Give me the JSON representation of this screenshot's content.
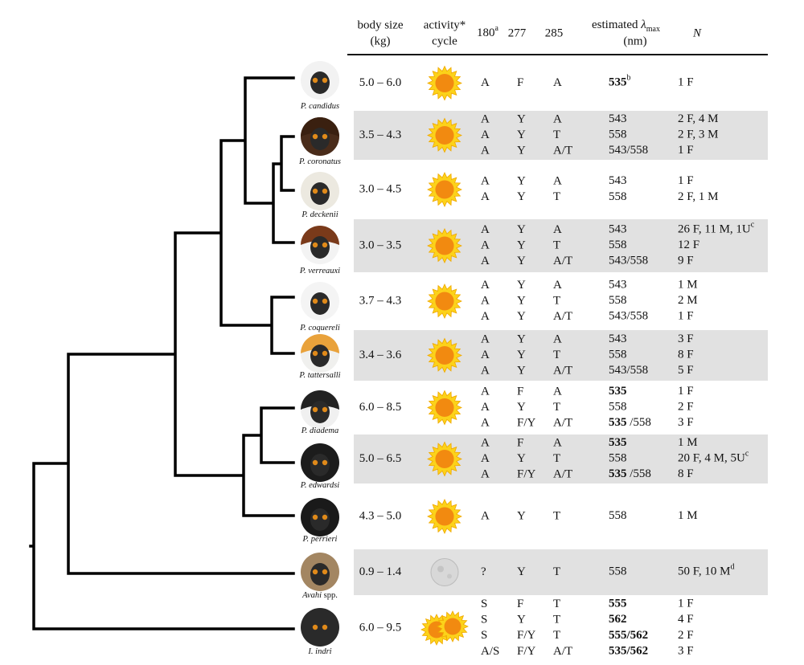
{
  "header": {
    "body_size": [
      "body size",
      "(kg)"
    ],
    "activity": [
      "activity*",
      "cycle"
    ],
    "c180": "180",
    "c180_sup": "a",
    "c277": "277",
    "c285": "285",
    "lambda_pre": "estimated ",
    "lambda_sym": "λ",
    "lambda_sub": "max",
    "lambda_unit": "(nm)",
    "n": "N"
  },
  "rows": [
    {
      "name": "P. candidus",
      "size": "5.0 – 6.0",
      "icon": "sun",
      "shaded": false,
      "lines": [
        {
          "g": [
            "A",
            "F",
            "A"
          ],
          "lambda": "535",
          "lambda_bold": true,
          "lambda_sup": "b",
          "n": "1 F"
        }
      ]
    },
    {
      "name": "P. coronatus",
      "size": "3.5 – 4.3",
      "icon": "sun",
      "shaded": true,
      "lines": [
        {
          "g": [
            "A",
            "Y",
            "A"
          ],
          "lambda": "543",
          "n": "2 F, 4 M"
        },
        {
          "g": [
            "A",
            "Y",
            "T"
          ],
          "lambda": "558",
          "n": "2 F, 3 M"
        },
        {
          "g": [
            "A",
            "Y",
            "A/T"
          ],
          "lambda": "543/558",
          "n": "1 F"
        }
      ]
    },
    {
      "name": "P. deckenii",
      "size": "3.0 – 4.5",
      "icon": "sun",
      "shaded": false,
      "lines": [
        {
          "g": [
            "A",
            "Y",
            "A"
          ],
          "lambda": "543",
          "n": "1 F"
        },
        {
          "g": [
            "A",
            "Y",
            "T"
          ],
          "lambda": "558",
          "n": "2 F, 1 M"
        }
      ]
    },
    {
      "name": "P. verreauxi",
      "size": "3.0 – 3.5",
      "icon": "sun",
      "shaded": true,
      "lines": [
        {
          "g": [
            "A",
            "Y",
            "A"
          ],
          "lambda": "543",
          "n": "26 F, 11 M, 1U",
          "n_sup": "c"
        },
        {
          "g": [
            "A",
            "Y",
            "T"
          ],
          "lambda": "558",
          "n": "12 F"
        },
        {
          "g": [
            "A",
            "Y",
            "A/T"
          ],
          "lambda": "543/558",
          "n": "9 F"
        }
      ]
    },
    {
      "name": "P. coquereli",
      "size": "3.7 – 4.3",
      "icon": "sun",
      "shaded": false,
      "lines": [
        {
          "g": [
            "A",
            "Y",
            "A"
          ],
          "lambda": "543",
          "n": "1 M"
        },
        {
          "g": [
            "A",
            "Y",
            "T"
          ],
          "lambda": "558",
          "n": "2 M"
        },
        {
          "g": [
            "A",
            "Y",
            "A/T"
          ],
          "lambda": "543/558",
          "n": "1 F"
        }
      ]
    },
    {
      "name": "P. tattersalli",
      "size": "3.4 – 3.6",
      "icon": "sun",
      "shaded": true,
      "lines": [
        {
          "g": [
            "A",
            "Y",
            "A"
          ],
          "lambda": "543",
          "n": "3 F"
        },
        {
          "g": [
            "A",
            "Y",
            "T"
          ],
          "lambda": "558",
          "n": "8 F"
        },
        {
          "g": [
            "A",
            "Y",
            "A/T"
          ],
          "lambda": "543/558",
          "n": "5 F"
        }
      ]
    },
    {
      "name": "P. diadema",
      "size": "6.0 – 8.5",
      "icon": "sun",
      "shaded": false,
      "lines": [
        {
          "g": [
            "A",
            "F",
            "A"
          ],
          "lambda": "535",
          "lambda_bold": true,
          "n": "1 F"
        },
        {
          "g": [
            "A",
            "Y",
            "T"
          ],
          "lambda": "558",
          "n": "2 F"
        },
        {
          "g": [
            "A",
            "F/Y",
            "A/T"
          ],
          "lambda": "535",
          "lambda_bold": true,
          "lambda_rest": " /558",
          "n": "3 F"
        }
      ]
    },
    {
      "name": "P. edwardsi",
      "size": "5.0 – 6.5",
      "icon": "sun",
      "shaded": true,
      "lines": [
        {
          "g": [
            "A",
            "F",
            "A"
          ],
          "lambda": "535",
          "lambda_bold": true,
          "n": "1 M"
        },
        {
          "g": [
            "A",
            "Y",
            "T"
          ],
          "lambda": "558",
          "n": "20 F, 4 M, 5U",
          "n_sup": "c"
        },
        {
          "g": [
            "A",
            "F/Y",
            "A/T"
          ],
          "lambda": "535",
          "lambda_bold": true,
          "lambda_rest": " /558",
          "n": "8 F"
        }
      ]
    },
    {
      "name": "P. perrieri",
      "size": "4.3 – 5.0",
      "icon": "sun",
      "shaded": false,
      "lines": [
        {
          "g": [
            "A",
            "Y",
            "T"
          ],
          "lambda": "558",
          "n": "1 M"
        }
      ]
    },
    {
      "name": "Avahi",
      "name_rest": " spp.",
      "size": "0.9 – 1.4",
      "icon": "moon",
      "shaded": true,
      "lines": [
        {
          "g": [
            "?",
            "Y",
            "T"
          ],
          "lambda": "558",
          "n": "50 F, 10 M",
          "n_sup": "d"
        }
      ]
    },
    {
      "name": "I. indri",
      "size": "6.0 – 9.5",
      "icon": "sun-pair",
      "shaded": false,
      "lines": [
        {
          "g": [
            "S",
            "F",
            "T"
          ],
          "lambda": "555",
          "lambda_bold": true,
          "n": "1 F"
        },
        {
          "g": [
            "S",
            "Y",
            "T"
          ],
          "lambda": "562",
          "lambda_bold": true,
          "n": "4 F"
        },
        {
          "g": [
            "S",
            "F/Y",
            "T"
          ],
          "lambda": "555/562",
          "lambda_bold": true,
          "n": "2 F"
        },
        {
          "g": [
            "A/S",
            "F/Y",
            "A/T"
          ],
          "lambda": "535/562",
          "lambda_bold": true,
          "n": "3 F"
        }
      ]
    }
  ]
}
